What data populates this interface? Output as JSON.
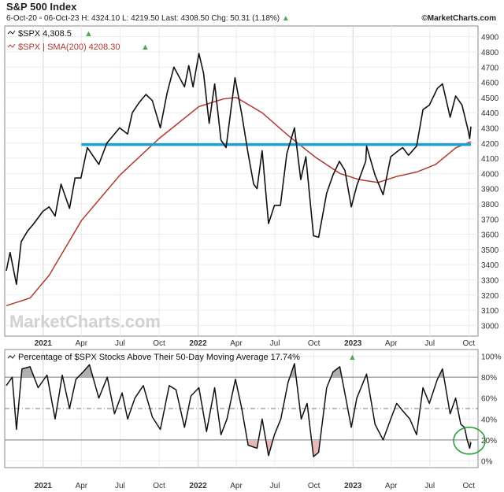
{
  "header": {
    "title": "S&P 500 Index",
    "range": "6-Oct-20 ▫ 06-Oct-23",
    "h": "H: 4324.10",
    "l": "L: 4219.50",
    "last": "Last: 4308.50",
    "chg": "Chg: 50.31 (1.18%)",
    "chg_arrow": "▲",
    "brand": "©MarketCharts.com"
  },
  "watermark": "MarketCharts.com",
  "colors": {
    "price": "#111111",
    "sma": "#b03a2e",
    "support": "#1e9fd0",
    "highlight_circle": "#2e9e3e",
    "up_arrow": "#52a852",
    "overbought_fill": "#b0b0b0",
    "oversold_fill": "#e6b8b8"
  },
  "top_panel": {
    "legend1": "$SPX 4,308.5",
    "legend2": "$SPX | SMA(200) 4208.30",
    "legend_arrow": "▲",
    "yticks": [
      "4900",
      "4800",
      "4700",
      "4600",
      "4500",
      "4400",
      "4300",
      "4200",
      "4100",
      "4000",
      "3900",
      "3800",
      "3700",
      "3600",
      "3500",
      "3400",
      "3300",
      "3200",
      "3100",
      "3000"
    ]
  },
  "bottom_panel": {
    "legend": "Percentage of $SPX Stocks Above Their 50-Day Moving Average 17.74%",
    "legend_arrow": "▲",
    "yticks": [
      "100%",
      "80%",
      "60%",
      "40%",
      "20%",
      "0%"
    ]
  },
  "xticks": [
    "2021",
    "Apr",
    "Jul",
    "Oct",
    "2022",
    "Apr",
    "Jul",
    "Oct",
    "2023",
    "Apr",
    "Jul",
    "Oct"
  ],
  "chart_data": [
    {
      "type": "line",
      "title": "S&P 500 Index",
      "x_range": [
        "2020-10-06",
        "2023-10-06"
      ],
      "ylim": [
        2950,
        4950
      ],
      "grid": true,
      "legend_position": "top-left",
      "series": [
        {
          "name": "$SPX",
          "points": [
            [
              "2020-10-06",
              3360
            ],
            [
              "2020-10-15",
              3480
            ],
            [
              "2020-10-30",
              3270
            ],
            [
              "2020-11-10",
              3550
            ],
            [
              "2020-11-25",
              3620
            ],
            [
              "2020-12-10",
              3670
            ],
            [
              "2020-12-31",
              3750
            ],
            [
              "2021-01-15",
              3780
            ],
            [
              "2021-01-29",
              3720
            ],
            [
              "2021-02-12",
              3930
            ],
            [
              "2021-03-04",
              3770
            ],
            [
              "2021-03-17",
              3970
            ],
            [
              "2021-03-31",
              3970
            ],
            [
              "2021-04-15",
              4170
            ],
            [
              "2021-05-12",
              4060
            ],
            [
              "2021-05-31",
              4200
            ],
            [
              "2021-06-15",
              4250
            ],
            [
              "2021-06-30",
              4300
            ],
            [
              "2021-07-19",
              4260
            ],
            [
              "2021-07-30",
              4400
            ],
            [
              "2021-08-16",
              4470
            ],
            [
              "2021-08-31",
              4520
            ],
            [
              "2021-09-15",
              4480
            ],
            [
              "2021-10-04",
              4300
            ],
            [
              "2021-10-20",
              4530
            ],
            [
              "2021-11-05",
              4700
            ],
            [
              "2021-11-30",
              4570
            ],
            [
              "2021-12-10",
              4710
            ],
            [
              "2021-12-20",
              4570
            ],
            [
              "2022-01-03",
              4790
            ],
            [
              "2022-01-14",
              4660
            ],
            [
              "2022-01-27",
              4330
            ],
            [
              "2022-02-09",
              4590
            ],
            [
              "2022-02-24",
              4220
            ],
            [
              "2022-03-08",
              4170
            ],
            [
              "2022-03-29",
              4630
            ],
            [
              "2022-04-14",
              4390
            ],
            [
              "2022-04-29",
              4130
            ],
            [
              "2022-05-12",
              3930
            ],
            [
              "2022-05-20",
              3900
            ],
            [
              "2022-06-01",
              4150
            ],
            [
              "2022-06-16",
              3670
            ],
            [
              "2022-06-30",
              3790
            ],
            [
              "2022-07-14",
              3790
            ],
            [
              "2022-07-29",
              4130
            ],
            [
              "2022-08-16",
              4300
            ],
            [
              "2022-08-31",
              3960
            ],
            [
              "2022-09-12",
              4110
            ],
            [
              "2022-09-30",
              3590
            ],
            [
              "2022-10-12",
              3580
            ],
            [
              "2022-10-31",
              3870
            ],
            [
              "2022-11-15",
              3990
            ],
            [
              "2022-11-30",
              4080
            ],
            [
              "2022-12-13",
              4020
            ],
            [
              "2022-12-28",
              3780
            ],
            [
              "2023-01-10",
              3920
            ],
            [
              "2023-01-31",
              4080
            ],
            [
              "2023-02-02",
              4180
            ],
            [
              "2023-02-22",
              3990
            ],
            [
              "2023-03-13",
              3860
            ],
            [
              "2023-03-31",
              4110
            ],
            [
              "2023-04-18",
              4150
            ],
            [
              "2023-04-28",
              4170
            ],
            [
              "2023-05-12",
              4120
            ],
            [
              "2023-05-31",
              4180
            ],
            [
              "2023-06-15",
              4420
            ],
            [
              "2023-06-30",
              4450
            ],
            [
              "2023-07-19",
              4560
            ],
            [
              "2023-07-31",
              4590
            ],
            [
              "2023-08-18",
              4370
            ],
            [
              "2023-08-31",
              4510
            ],
            [
              "2023-09-15",
              4450
            ],
            [
              "2023-09-29",
              4290
            ],
            [
              "2023-10-03",
              4230
            ],
            [
              "2023-10-06",
              4308.5
            ]
          ]
        },
        {
          "name": "$SPX | SMA(200)",
          "points": [
            [
              "2020-10-06",
              3130
            ],
            [
              "2020-12-01",
              3180
            ],
            [
              "2021-01-15",
              3330
            ],
            [
              "2021-04-01",
              3690
            ],
            [
              "2021-07-01",
              3990
            ],
            [
              "2021-10-01",
              4230
            ],
            [
              "2022-01-03",
              4440
            ],
            [
              "2022-03-01",
              4490
            ],
            [
              "2022-04-01",
              4500
            ],
            [
              "2022-06-01",
              4400
            ],
            [
              "2022-08-01",
              4250
            ],
            [
              "2022-10-03",
              4110
            ],
            [
              "2022-12-01",
              4000
            ],
            [
              "2023-01-15",
              3960
            ],
            [
              "2023-03-01",
              3940
            ],
            [
              "2023-04-14",
              3980
            ],
            [
              "2023-06-01",
              4010
            ],
            [
              "2023-07-15",
              4060
            ],
            [
              "2023-09-01",
              4170
            ],
            [
              "2023-10-06",
              4208.3
            ]
          ]
        },
        {
          "name": "support",
          "points": [
            [
              "2021-04-01",
              4190
            ],
            [
              "2023-10-06",
              4190
            ]
          ]
        }
      ]
    },
    {
      "type": "area",
      "title": "Percentage of $SPX Stocks Above Their 50-Day Moving Average 17.74%",
      "x_range": [
        "2020-10-06",
        "2023-10-06"
      ],
      "ylim": [
        -5,
        105
      ],
      "reference_lines": [
        80,
        50,
        20
      ],
      "grid": true,
      "series": [
        {
          "name": "Percentage of $SPX Stocks Above Their 50-Day Moving Average",
          "points": [
            [
              "2020-10-06",
              72
            ],
            [
              "2020-10-20",
              80
            ],
            [
              "2020-10-30",
              30
            ],
            [
              "2020-11-12",
              88
            ],
            [
              "2020-12-01",
              90
            ],
            [
              "2020-12-20",
              70
            ],
            [
              "2021-01-10",
              82
            ],
            [
              "2021-01-29",
              40
            ],
            [
              "2021-02-15",
              82
            ],
            [
              "2021-03-04",
              50
            ],
            [
              "2021-03-19",
              78
            ],
            [
              "2021-04-05",
              85
            ],
            [
              "2021-04-20",
              92
            ],
            [
              "2021-05-12",
              60
            ],
            [
              "2021-06-01",
              80
            ],
            [
              "2021-06-18",
              45
            ],
            [
              "2021-07-06",
              65
            ],
            [
              "2021-07-19",
              40
            ],
            [
              "2021-08-05",
              60
            ],
            [
              "2021-08-25",
              72
            ],
            [
              "2021-09-15",
              42
            ],
            [
              "2021-10-04",
              30
            ],
            [
              "2021-10-25",
              72
            ],
            [
              "2021-11-10",
              68
            ],
            [
              "2021-11-30",
              32
            ],
            [
              "2021-12-15",
              62
            ],
            [
              "2022-01-03",
              70
            ],
            [
              "2022-01-21",
              28
            ],
            [
              "2022-02-09",
              70
            ],
            [
              "2022-02-24",
              25
            ],
            [
              "2022-03-10",
              40
            ],
            [
              "2022-03-30",
              78
            ],
            [
              "2022-04-14",
              50
            ],
            [
              "2022-04-29",
              15
            ],
            [
              "2022-05-20",
              12
            ],
            [
              "2022-06-01",
              40
            ],
            [
              "2022-06-16",
              5
            ],
            [
              "2022-06-30",
              25
            ],
            [
              "2022-07-15",
              40
            ],
            [
              "2022-08-01",
              75
            ],
            [
              "2022-08-16",
              93
            ],
            [
              "2022-09-01",
              40
            ],
            [
              "2022-09-15",
              55
            ],
            [
              "2022-09-30",
              4
            ],
            [
              "2022-10-12",
              8
            ],
            [
              "2022-10-31",
              70
            ],
            [
              "2022-11-15",
              85
            ],
            [
              "2022-12-01",
              90
            ],
            [
              "2022-12-15",
              60
            ],
            [
              "2022-12-28",
              32
            ],
            [
              "2023-01-10",
              60
            ],
            [
              "2023-02-02",
              83
            ],
            [
              "2023-02-22",
              35
            ],
            [
              "2023-03-13",
              20
            ],
            [
              "2023-03-31",
              40
            ],
            [
              "2023-04-14",
              55
            ],
            [
              "2023-04-28",
              48
            ],
            [
              "2023-05-15",
              40
            ],
            [
              "2023-05-31",
              25
            ],
            [
              "2023-06-15",
              70
            ],
            [
              "2023-06-30",
              55
            ],
            [
              "2023-07-19",
              78
            ],
            [
              "2023-07-31",
              88
            ],
            [
              "2023-08-18",
              45
            ],
            [
              "2023-08-31",
              60
            ],
            [
              "2023-09-12",
              35
            ],
            [
              "2023-09-21",
              32
            ],
            [
              "2023-09-27",
              20
            ],
            [
              "2023-10-03",
              12
            ],
            [
              "2023-10-06",
              17.74
            ]
          ]
        }
      ]
    }
  ]
}
